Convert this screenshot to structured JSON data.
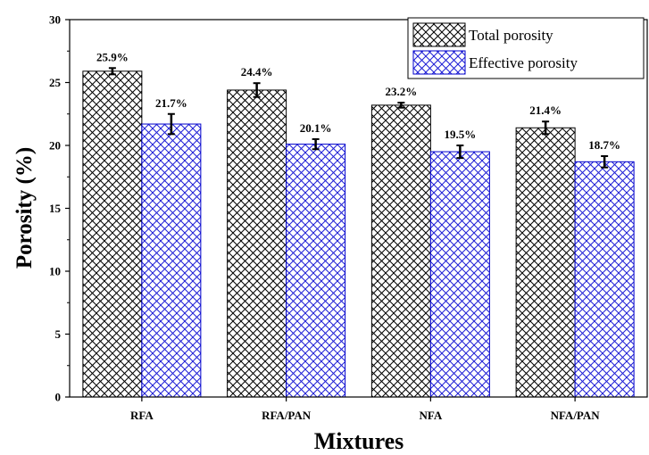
{
  "chart_data": {
    "type": "bar",
    "title": "",
    "xlabel": "Mixtures",
    "ylabel": "Porosity (%)",
    "ylim": [
      0,
      30
    ],
    "yticks": [
      0,
      5,
      10,
      15,
      20,
      25,
      30
    ],
    "categories": [
      "RFA",
      "RFA/PAN",
      "NFA",
      "NFA/PAN"
    ],
    "series": [
      {
        "name": "Total porosity",
        "values": [
          25.9,
          24.4,
          23.2,
          21.4
        ],
        "errors": [
          0.25,
          0.55,
          0.2,
          0.5
        ],
        "labels": [
          "25.9%",
          "24.4%",
          "23.2%",
          "21.4%"
        ],
        "color": "#000000",
        "pattern": "black-crosshatch"
      },
      {
        "name": "Effective porosity",
        "values": [
          21.7,
          20.1,
          19.5,
          18.7
        ],
        "errors": [
          0.8,
          0.4,
          0.5,
          0.45
        ],
        "labels": [
          "21.7%",
          "20.1%",
          "19.5%",
          "18.7%"
        ],
        "color": "#0000cc",
        "pattern": "blue-crosshatch"
      }
    ],
    "legend_position": "top-right",
    "grid": false
  }
}
